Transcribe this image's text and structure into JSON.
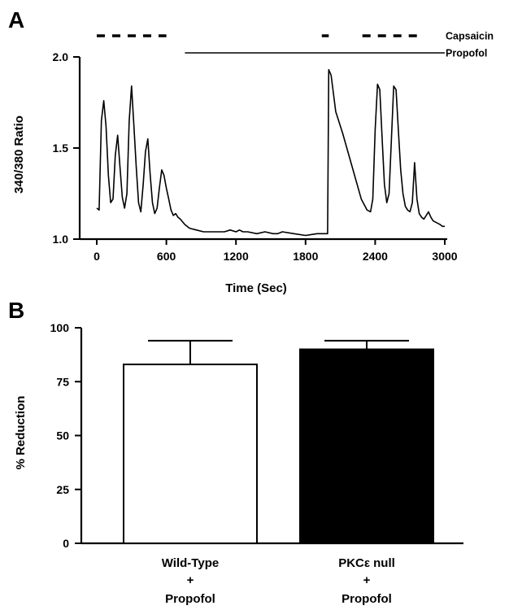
{
  "chart_data": [
    {
      "panel": "A",
      "type": "line",
      "xlabel": "Time (Sec)",
      "ylabel": "340/380 Ratio",
      "xlim": [
        -50,
        3050
      ],
      "ylim": [
        1.0,
        2.0
      ],
      "xticks": [
        0,
        600,
        1200,
        1800,
        2400,
        3000
      ],
      "yticks": [
        1.0,
        1.5,
        2.0
      ],
      "ytick_labels": [
        "1.0",
        "1.5",
        "2.0"
      ],
      "treatments": [
        {
          "label": "Capsaicin",
          "style": "dashed",
          "segments": [
            [
              0,
              600
            ],
            [
              1940,
              2000
            ],
            [
              2290,
              2760
            ]
          ]
        },
        {
          "label": "Propofol",
          "style": "solid",
          "segments": [
            [
              760,
              3000
            ]
          ]
        }
      ],
      "series": [
        {
          "color": "#000000",
          "x": [
            0,
            20,
            40,
            60,
            80,
            100,
            120,
            140,
            160,
            180,
            200,
            220,
            240,
            260,
            280,
            300,
            320,
            340,
            360,
            380,
            400,
            420,
            440,
            460,
            480,
            500,
            520,
            540,
            560,
            580,
            600,
            620,
            640,
            660,
            680,
            700,
            720,
            760,
            800,
            860,
            920,
            1000,
            1100,
            1150,
            1200,
            1230,
            1260,
            1300,
            1380,
            1450,
            1520,
            1560,
            1600,
            1700,
            1800,
            1900,
            1960,
            1975,
            1990,
            2000,
            2020,
            2060,
            2120,
            2200,
            2280,
            2330,
            2360,
            2380,
            2400,
            2420,
            2440,
            2460,
            2480,
            2500,
            2520,
            2540,
            2560,
            2580,
            2600,
            2620,
            2640,
            2660,
            2680,
            2700,
            2720,
            2740,
            2760,
            2780,
            2800,
            2820,
            2840,
            2860,
            2880,
            2900,
            2930,
            2960,
            2980,
            3000
          ],
          "y": [
            1.17,
            1.16,
            1.65,
            1.76,
            1.62,
            1.35,
            1.2,
            1.22,
            1.46,
            1.57,
            1.4,
            1.23,
            1.17,
            1.25,
            1.65,
            1.84,
            1.62,
            1.4,
            1.2,
            1.15,
            1.3,
            1.48,
            1.55,
            1.36,
            1.2,
            1.14,
            1.17,
            1.28,
            1.38,
            1.35,
            1.28,
            1.22,
            1.16,
            1.13,
            1.14,
            1.12,
            1.11,
            1.08,
            1.06,
            1.05,
            1.04,
            1.04,
            1.04,
            1.05,
            1.04,
            1.05,
            1.04,
            1.04,
            1.03,
            1.04,
            1.03,
            1.03,
            1.04,
            1.03,
            1.02,
            1.03,
            1.03,
            1.03,
            1.03,
            1.93,
            1.9,
            1.7,
            1.58,
            1.4,
            1.22,
            1.16,
            1.15,
            1.22,
            1.6,
            1.85,
            1.82,
            1.55,
            1.3,
            1.2,
            1.25,
            1.55,
            1.84,
            1.82,
            1.6,
            1.38,
            1.25,
            1.18,
            1.16,
            1.15,
            1.2,
            1.42,
            1.22,
            1.14,
            1.12,
            1.11,
            1.13,
            1.15,
            1.12,
            1.1,
            1.09,
            1.08,
            1.07,
            1.07
          ]
        }
      ]
    },
    {
      "panel": "B",
      "type": "bar",
      "ylabel": "% Reduction",
      "ylim": [
        0,
        100
      ],
      "yticks": [
        0,
        25,
        50,
        75,
        100
      ],
      "ytick_labels": [
        "0",
        "25",
        "50",
        "75",
        "100"
      ],
      "categories": [
        {
          "lines": [
            "Wild-Type",
            "+",
            "Propofol"
          ]
        },
        {
          "lines": [
            "PKCε null",
            "+",
            "Propofol"
          ]
        }
      ],
      "values": [
        83,
        90
      ],
      "errors": [
        11,
        4
      ],
      "colors": [
        "#ffffff",
        "#000000"
      ]
    }
  ]
}
